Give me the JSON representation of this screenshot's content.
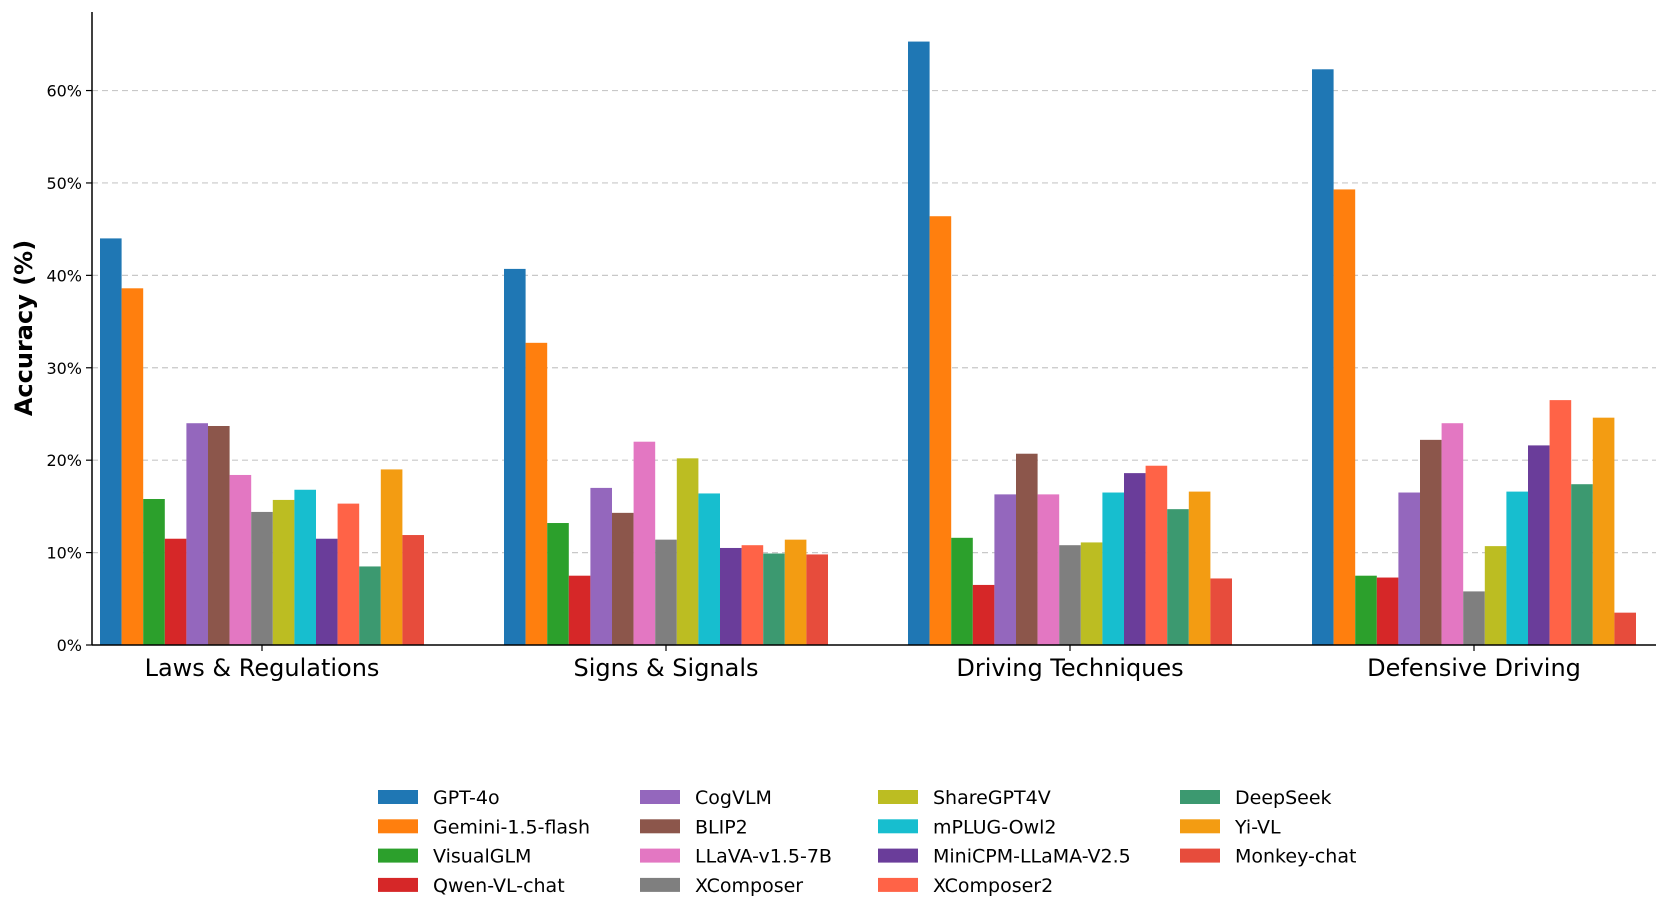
{
  "chart_data": {
    "type": "bar",
    "title": "",
    "xlabel": "",
    "ylabel": "Accuracy (%)",
    "ylim": [
      0,
      68.5
    ],
    "yticks": [
      0,
      10,
      20,
      30,
      40,
      50,
      60
    ],
    "ytick_labels": [
      "0%",
      "10%",
      "20%",
      "30%",
      "40%",
      "50%",
      "60%"
    ],
    "grid": "horizontal dashed",
    "legend_position": "bottom",
    "categories": [
      "Laws & Regulations",
      "Signs & Signals",
      "Driving Techniques",
      "Defensive Driving"
    ],
    "series": [
      {
        "name": "GPT-4o",
        "color": "#1f77b4",
        "values": [
          44.0,
          40.7,
          65.3,
          62.3
        ]
      },
      {
        "name": "Gemini-1.5-flash",
        "color": "#ff7f0e",
        "values": [
          38.6,
          32.7,
          46.4,
          49.3
        ]
      },
      {
        "name": "VisualGLM",
        "color": "#2ca02c",
        "values": [
          15.8,
          13.2,
          11.6,
          7.5
        ]
      },
      {
        "name": "Qwen-VL-chat",
        "color": "#d62728",
        "values": [
          11.5,
          7.5,
          6.5,
          7.3
        ]
      },
      {
        "name": "CogVLM",
        "color": "#9467bd",
        "values": [
          24.0,
          17.0,
          16.3,
          16.5
        ]
      },
      {
        "name": "BLIP2",
        "color": "#8c564b",
        "values": [
          23.7,
          14.3,
          20.7,
          22.2
        ]
      },
      {
        "name": "LLaVA-v1.5-7B",
        "color": "#e377c2",
        "values": [
          18.4,
          22.0,
          16.3,
          24.0
        ]
      },
      {
        "name": "XComposer",
        "color": "#7f7f7f",
        "values": [
          14.4,
          11.4,
          10.8,
          5.8
        ]
      },
      {
        "name": "ShareGPT4V",
        "color": "#bcbd22",
        "values": [
          15.7,
          20.2,
          11.1,
          10.7
        ]
      },
      {
        "name": "mPLUG-Owl2",
        "color": "#17becf",
        "values": [
          16.8,
          16.4,
          16.5,
          16.6
        ]
      },
      {
        "name": "MiniCPM-LLaMA-V2.5",
        "color": "#6a3d9a",
        "values": [
          11.5,
          10.5,
          18.6,
          21.6
        ]
      },
      {
        "name": "XComposer2",
        "color": "#ff6347",
        "values": [
          15.3,
          10.8,
          19.4,
          26.5
        ]
      },
      {
        "name": "DeepSeek",
        "color": "#3c9970",
        "values": [
          8.5,
          9.9,
          14.7,
          17.4
        ]
      },
      {
        "name": "Yi-VL",
        "color": "#f39c12",
        "values": [
          19.0,
          11.4,
          16.6,
          24.6
        ]
      },
      {
        "name": "Monkey-chat",
        "color": "#e74c3c",
        "values": [
          11.9,
          9.8,
          7.2,
          3.5
        ]
      }
    ]
  }
}
